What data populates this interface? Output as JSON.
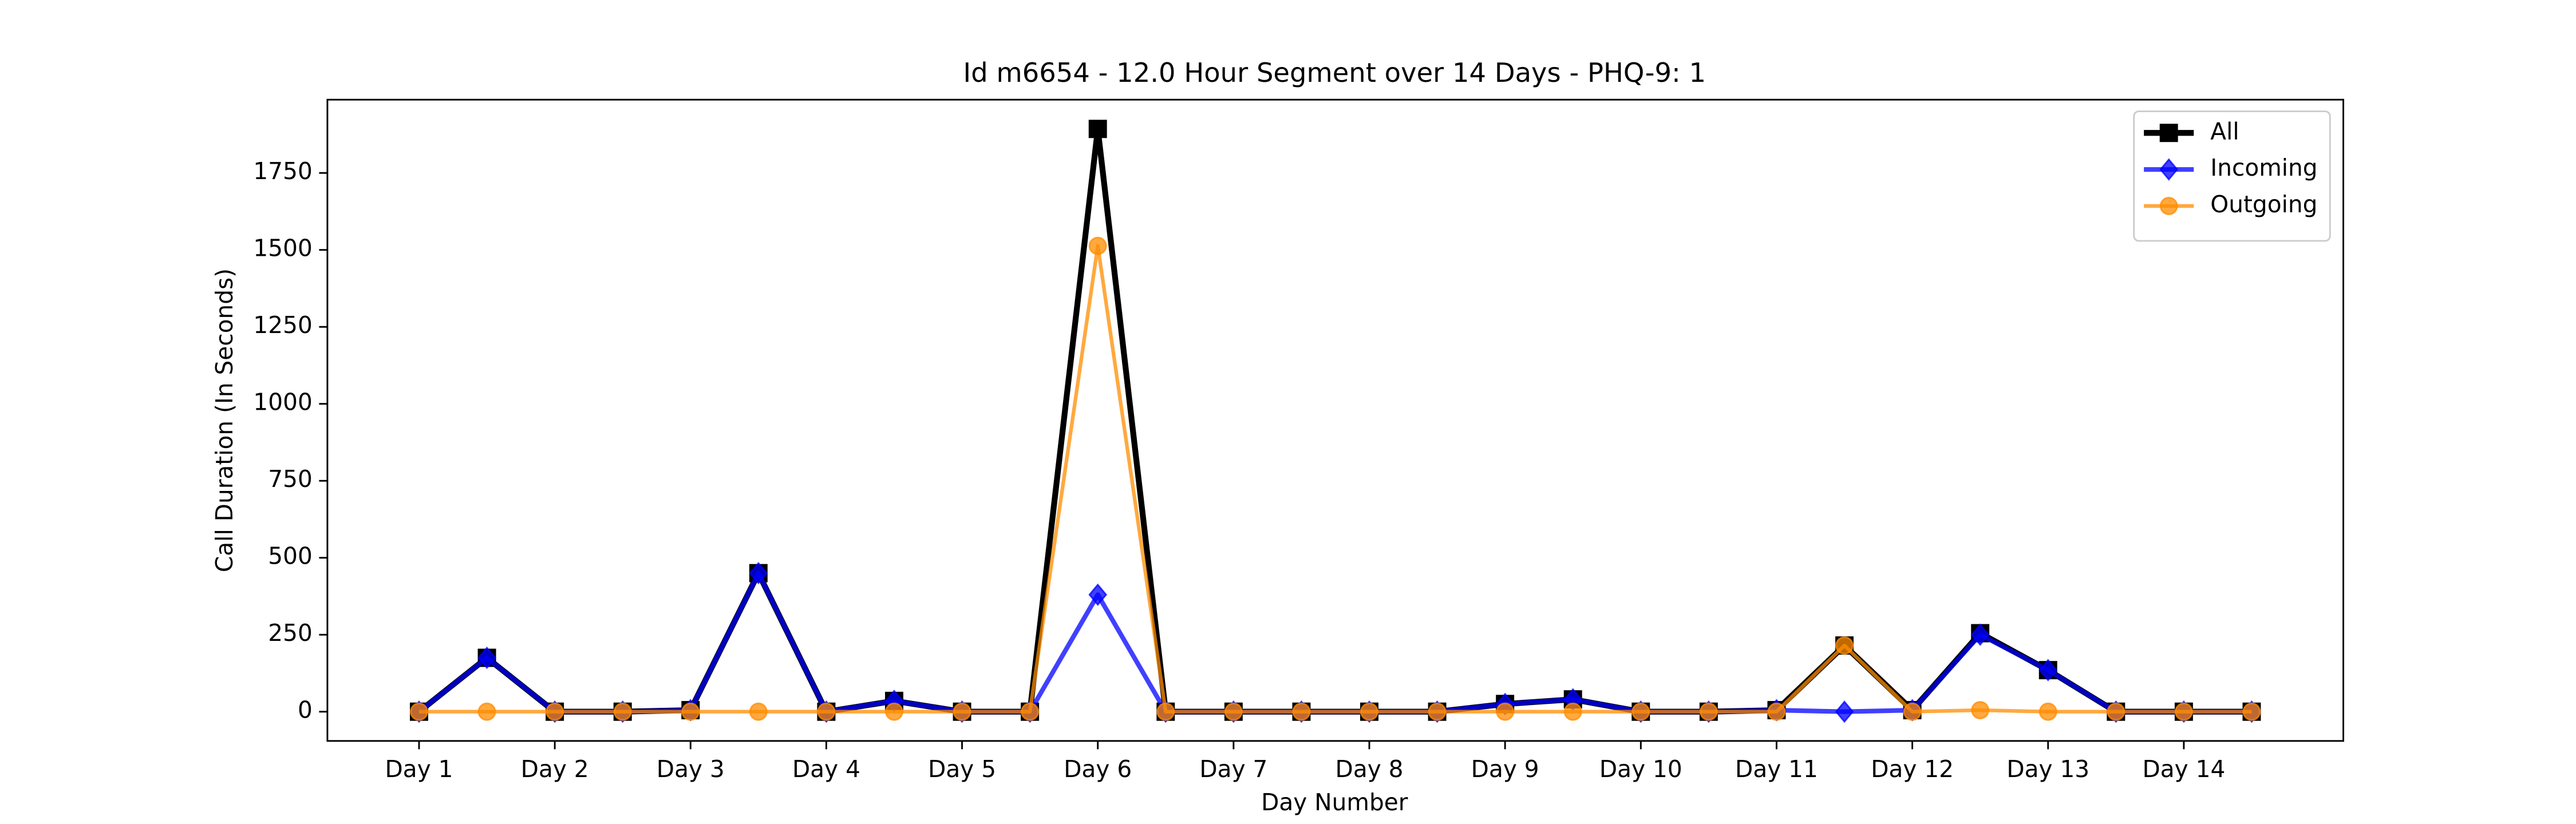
{
  "chart_data": {
    "type": "line",
    "title": "Id m6654 - 12.0 Hour Segment over 14 Days - PHQ-9: 1",
    "xlabel": "Day Number",
    "ylabel": "Call Duration (In Seconds)",
    "categories": [
      "Day 1",
      null,
      "Day 2",
      null,
      "Day 3",
      null,
      "Day 4",
      null,
      "Day 5",
      null,
      "Day 6",
      null,
      "Day 7",
      null,
      "Day 8",
      null,
      "Day 9",
      null,
      "Day 10",
      null,
      "Day 11",
      null,
      "Day 12",
      null,
      "Day 13",
      null,
      "Day 14",
      null
    ],
    "series": [
      {
        "name": "All",
        "color": "#000000",
        "marker": "square",
        "width": 3.5,
        "values": [
          0,
          175,
          0,
          0,
          5,
          450,
          0,
          35,
          0,
          0,
          1893,
          0,
          0,
          0,
          0,
          0,
          25,
          40,
          0,
          0,
          5,
          215,
          5,
          255,
          135,
          0,
          0,
          0
        ]
      },
      {
        "name": "Incoming",
        "color": "#0000ff",
        "alpha": 0.75,
        "marker": "diamond",
        "width": 2.8,
        "values": [
          0,
          175,
          0,
          0,
          5,
          450,
          0,
          35,
          0,
          0,
          380,
          0,
          0,
          0,
          0,
          0,
          25,
          40,
          0,
          0,
          5,
          0,
          5,
          250,
          135,
          0,
          0,
          0
        ]
      },
      {
        "name": "Outgoing",
        "color": "#ff8c00",
        "alpha": 0.75,
        "marker": "circle",
        "width": 2.2,
        "values": [
          0,
          0,
          0,
          0,
          0,
          0,
          0,
          0,
          0,
          0,
          1513,
          0,
          0,
          0,
          0,
          0,
          0,
          0,
          0,
          0,
          0,
          215,
          0,
          5,
          0,
          0,
          0,
          0
        ]
      }
    ],
    "ylim": [
      -95,
      1988
    ],
    "yticks": [
      0,
      250,
      500,
      750,
      1000,
      1250,
      1500,
      1750
    ],
    "legend": "upper right"
  }
}
